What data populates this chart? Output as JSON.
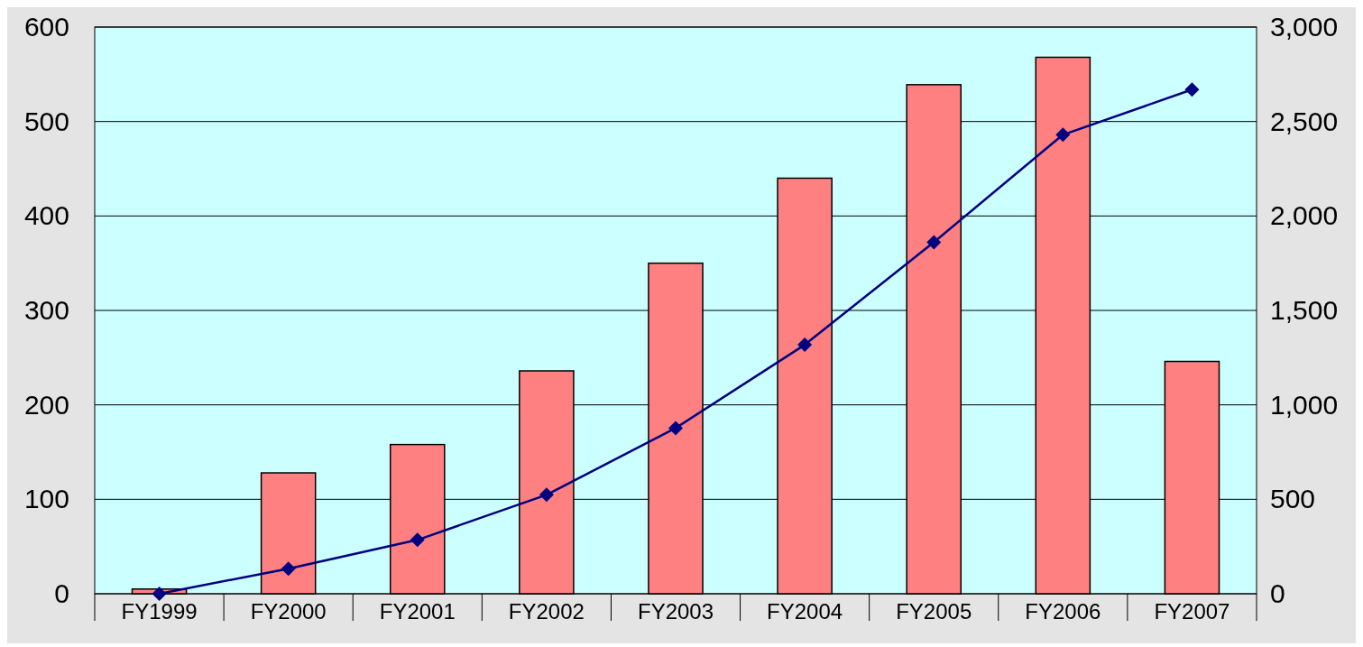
{
  "chart_data": {
    "type": "bar",
    "categories": [
      "FY1999",
      "FY2000",
      "FY2001",
      "FY2002",
      "FY2003",
      "FY2004",
      "FY2005",
      "FY2006",
      "FY2007"
    ],
    "series": [
      {
        "color": "#ff8080",
        "values": [
          5,
          128,
          158,
          236,
          350,
          440,
          539,
          568,
          246
        ]
      },
      {
        "type": "line",
        "axis": "y2",
        "color": "#000080",
        "values": [
          0,
          133,
          285,
          524,
          877,
          1318,
          1861,
          2430,
          2669
        ]
      }
    ],
    "ylim": [
      0,
      600
    ],
    "yticks": [
      0,
      100,
      200,
      300,
      400,
      500,
      600
    ],
    "y2lim": [
      0,
      3000
    ],
    "y2ticks": [
      0,
      {
        "value": 500,
        "label": "500"
      },
      {
        "value": 1000,
        "label": "1,000"
      },
      {
        "value": 1500,
        "label": "1,500"
      },
      {
        "value": 2000,
        "label": "2,000"
      },
      {
        "value": 2500,
        "label": "2,500"
      },
      {
        "value": 3000,
        "label": "3,000"
      }
    ],
    "grid": "y",
    "marker": "diamond",
    "line_style": "solid"
  }
}
